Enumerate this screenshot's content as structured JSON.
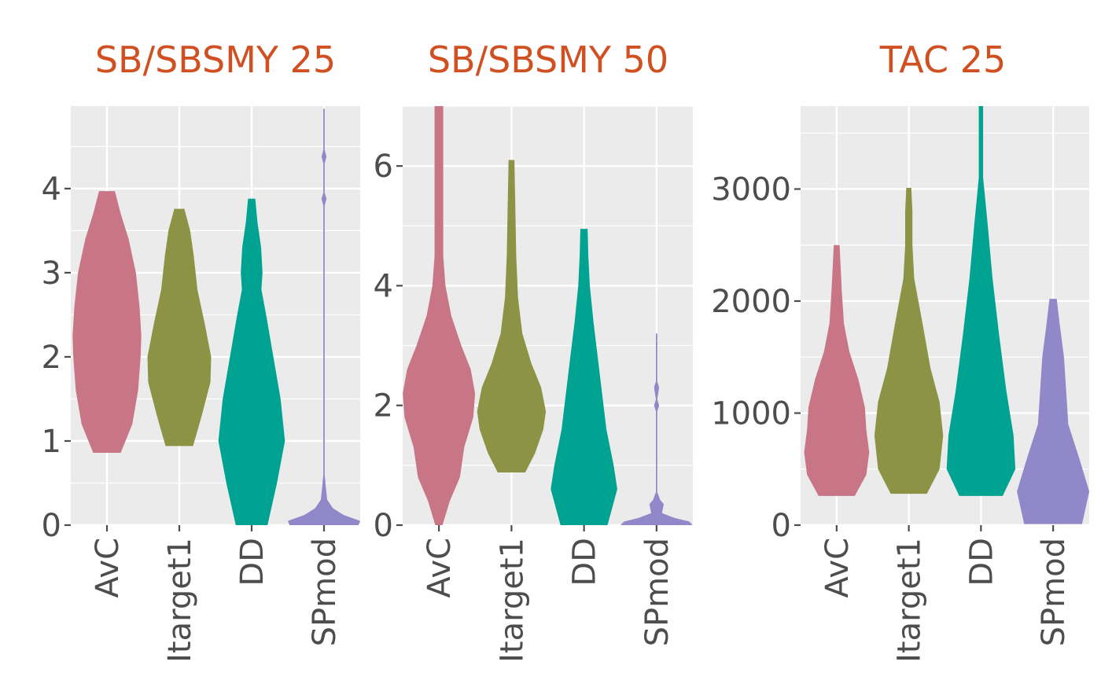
{
  "chart_data": [
    {
      "type": "violin",
      "title": "SB/SBSMY 25",
      "categories": [
        "AvC",
        "Itarget1",
        "DD",
        "SPmod"
      ],
      "yticks": [
        0,
        1,
        2,
        3,
        4
      ],
      "ylim": [
        0,
        4.98
      ],
      "xlabel": "",
      "ylabel": "",
      "violins": [
        {
          "category": "AvC",
          "min": 0.86,
          "max": 3.97,
          "profile": [
            [
              0.86,
              0.38
            ],
            [
              1.2,
              0.7
            ],
            [
              1.6,
              0.86
            ],
            [
              2.0,
              0.93
            ],
            [
              2.25,
              0.95
            ],
            [
              2.6,
              0.9
            ],
            [
              3.0,
              0.8
            ],
            [
              3.4,
              0.6
            ],
            [
              3.7,
              0.38
            ],
            [
              3.97,
              0.22
            ]
          ]
        },
        {
          "category": "Itarget1",
          "min": 0.94,
          "max": 3.76,
          "profile": [
            [
              0.94,
              0.38
            ],
            [
              1.3,
              0.62
            ],
            [
              1.7,
              0.86
            ],
            [
              2.0,
              0.88
            ],
            [
              2.4,
              0.7
            ],
            [
              2.8,
              0.5
            ],
            [
              3.2,
              0.4
            ],
            [
              3.5,
              0.3
            ],
            [
              3.76,
              0.14
            ]
          ]
        },
        {
          "category": "DD",
          "min": 0.0,
          "max": 3.88,
          "profile": [
            [
              0.0,
              0.44
            ],
            [
              0.5,
              0.7
            ],
            [
              1.0,
              0.92
            ],
            [
              1.5,
              0.8
            ],
            [
              2.0,
              0.6
            ],
            [
              2.5,
              0.4
            ],
            [
              2.8,
              0.27
            ],
            [
              3.0,
              0.3
            ],
            [
              3.3,
              0.26
            ],
            [
              3.6,
              0.16
            ],
            [
              3.88,
              0.1
            ]
          ]
        },
        {
          "category": "SPmod",
          "min": 0.0,
          "max": 4.95,
          "profile": [
            [
              0.0,
              0.95
            ],
            [
              0.05,
              1.0
            ],
            [
              0.12,
              0.55
            ],
            [
              0.2,
              0.25
            ],
            [
              0.3,
              0.09
            ],
            [
              0.45,
              0.05
            ],
            [
              0.6,
              0.02
            ],
            [
              1.5,
              0.02
            ],
            [
              3.0,
              0.02
            ],
            [
              3.8,
              0.02
            ],
            [
              3.88,
              0.07
            ],
            [
              3.95,
              0.02
            ],
            [
              4.3,
              0.02
            ],
            [
              4.38,
              0.07
            ],
            [
              4.46,
              0.02
            ],
            [
              4.95,
              0.02
            ]
          ]
        }
      ]
    },
    {
      "type": "violin",
      "title": "SB/SBSMY 50",
      "categories": [
        "AvC",
        "Itarget1",
        "DD",
        "SPmod"
      ],
      "yticks": [
        0,
        2,
        4,
        6
      ],
      "ylim": [
        0,
        7.0
      ],
      "xlabel": "",
      "ylabel": "",
      "violins": [
        {
          "category": "AvC",
          "min": 0.0,
          "max": 7.0,
          "profile": [
            [
              0.0,
              0.1
            ],
            [
              0.4,
              0.3
            ],
            [
              0.8,
              0.58
            ],
            [
              1.3,
              0.7
            ],
            [
              1.8,
              0.95
            ],
            [
              2.2,
              1.0
            ],
            [
              2.6,
              0.88
            ],
            [
              3.0,
              0.62
            ],
            [
              3.5,
              0.34
            ],
            [
              4.0,
              0.18
            ],
            [
              4.5,
              0.12
            ],
            [
              5.5,
              0.12
            ],
            [
              7.0,
              0.12
            ]
          ]
        },
        {
          "category": "Itarget1",
          "min": 0.88,
          "max": 6.1,
          "profile": [
            [
              0.88,
              0.38
            ],
            [
              1.2,
              0.65
            ],
            [
              1.6,
              0.88
            ],
            [
              1.9,
              0.95
            ],
            [
              2.3,
              0.82
            ],
            [
              2.7,
              0.55
            ],
            [
              3.2,
              0.3
            ],
            [
              3.8,
              0.18
            ],
            [
              4.5,
              0.13
            ],
            [
              5.5,
              0.1
            ],
            [
              6.1,
              0.08
            ]
          ]
        },
        {
          "category": "DD",
          "min": 0.0,
          "max": 4.95,
          "profile": [
            [
              0.0,
              0.65
            ],
            [
              0.6,
              0.92
            ],
            [
              1.0,
              0.82
            ],
            [
              1.6,
              0.62
            ],
            [
              2.2,
              0.5
            ],
            [
              2.8,
              0.38
            ],
            [
              3.4,
              0.26
            ],
            [
              4.0,
              0.16
            ],
            [
              4.5,
              0.12
            ],
            [
              4.95,
              0.1
            ]
          ]
        },
        {
          "category": "SPmod",
          "min": 0.0,
          "max": 3.2,
          "profile": [
            [
              0.0,
              1.0
            ],
            [
              0.06,
              0.9
            ],
            [
              0.12,
              0.5
            ],
            [
              0.2,
              0.15
            ],
            [
              0.3,
              0.18
            ],
            [
              0.35,
              0.2
            ],
            [
              0.42,
              0.1
            ],
            [
              0.55,
              0.02
            ],
            [
              1.9,
              0.02
            ],
            [
              2.0,
              0.07
            ],
            [
              2.1,
              0.02
            ],
            [
              2.3,
              0.07
            ],
            [
              2.4,
              0.02
            ],
            [
              3.2,
              0.02
            ]
          ]
        }
      ]
    },
    {
      "type": "violin",
      "title": "TAC 25",
      "categories": [
        "AvC",
        "Itarget1",
        "DD",
        "SPmod"
      ],
      "yticks": [
        0,
        1000,
        2000,
        3000
      ],
      "ylim": [
        0,
        3740
      ],
      "xlabel": "",
      "ylabel": "",
      "violins": [
        {
          "category": "AvC",
          "min": 260,
          "max": 2500,
          "profile": [
            [
              260,
              0.5
            ],
            [
              450,
              0.82
            ],
            [
              650,
              0.9
            ],
            [
              850,
              0.82
            ],
            [
              1050,
              0.78
            ],
            [
              1300,
              0.6
            ],
            [
              1550,
              0.35
            ],
            [
              1800,
              0.2
            ],
            [
              2100,
              0.14
            ],
            [
              2500,
              0.08
            ]
          ]
        },
        {
          "category": "Itarget1",
          "min": 280,
          "max": 3010,
          "profile": [
            [
              280,
              0.5
            ],
            [
              500,
              0.85
            ],
            [
              800,
              0.95
            ],
            [
              1100,
              0.85
            ],
            [
              1400,
              0.6
            ],
            [
              1800,
              0.38
            ],
            [
              2200,
              0.15
            ],
            [
              2500,
              0.1
            ],
            [
              2800,
              0.1
            ],
            [
              3010,
              0.07
            ]
          ]
        },
        {
          "category": "DD",
          "min": 260,
          "max": 3740,
          "profile": [
            [
              260,
              0.6
            ],
            [
              500,
              0.95
            ],
            [
              800,
              0.9
            ],
            [
              1200,
              0.7
            ],
            [
              1700,
              0.5
            ],
            [
              2200,
              0.32
            ],
            [
              2700,
              0.18
            ],
            [
              3100,
              0.06
            ],
            [
              3740,
              0.06
            ]
          ]
        },
        {
          "category": "SPmod",
          "min": 10,
          "max": 2020,
          "profile": [
            [
              10,
              0.8
            ],
            [
              300,
              1.0
            ],
            [
              600,
              0.72
            ],
            [
              900,
              0.42
            ],
            [
              1200,
              0.36
            ],
            [
              1500,
              0.3
            ],
            [
              1800,
              0.18
            ],
            [
              2020,
              0.1
            ]
          ]
        }
      ]
    }
  ],
  "colors": {
    "title": "#d05022",
    "panel_bg": "#ebebeb",
    "grid": "#ffffff",
    "tick": "#4d4d4d",
    "fills": [
      "#c87585",
      "#8d9345",
      "#00a391",
      "#9088c8"
    ]
  }
}
